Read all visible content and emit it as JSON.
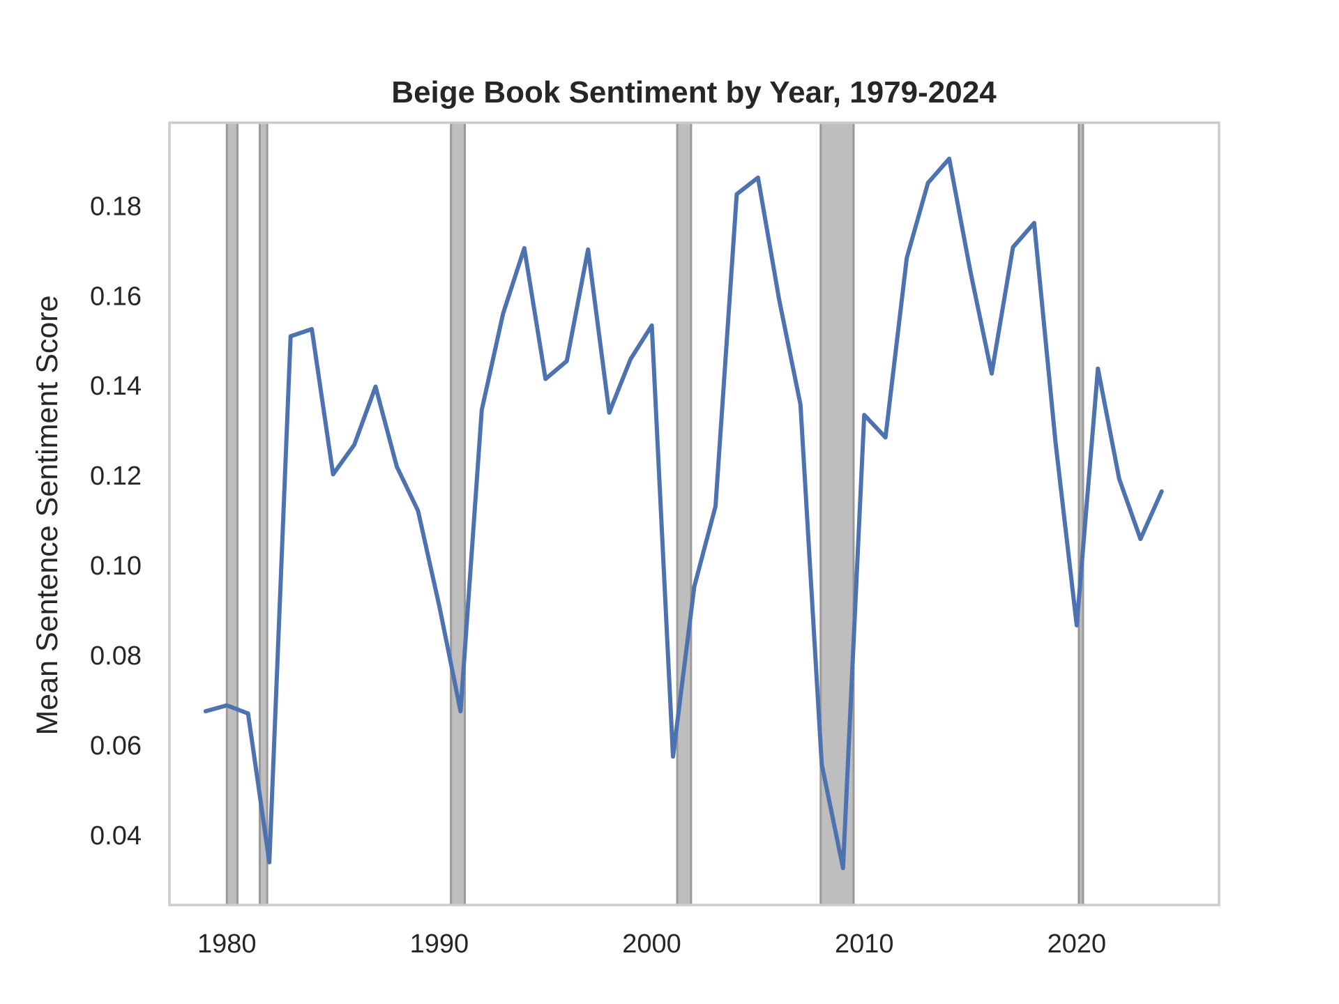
{
  "chart_data": {
    "type": "line",
    "title": "Beige Book Sentiment by Year, 1979-2024",
    "xlabel": "",
    "ylabel": "Mean Sentence Sentiment Score",
    "xlim": [
      1977.3,
      2026.7
    ],
    "ylim": [
      0.0245,
      0.1985
    ],
    "x_ticks": [
      1980,
      1990,
      2000,
      2010,
      2020
    ],
    "y_ticks": [
      0.04,
      0.06,
      0.08,
      0.1,
      0.12,
      0.14,
      0.16,
      0.18
    ],
    "y_tick_labels": [
      "0.04",
      "0.06",
      "0.08",
      "0.10",
      "0.12",
      "0.14",
      "0.16",
      "0.18"
    ],
    "x_tick_labels": [
      "1980",
      "1990",
      "2000",
      "2010",
      "2020"
    ],
    "grid": false,
    "legend": "none",
    "colors": {
      "line": "#4c72b0",
      "recession_fill": "#bebebe",
      "recession_edge": "#9a9a9a",
      "frame": "#cccccc",
      "text": "#262626"
    },
    "recession_bands": [
      [
        1980.0,
        1980.5
      ],
      [
        1981.55,
        1981.9
      ],
      [
        1990.55,
        1991.2
      ],
      [
        2001.2,
        2001.85
      ],
      [
        2007.95,
        2009.5
      ],
      [
        2020.1,
        2020.3
      ]
    ],
    "series": [
      {
        "x": [
          1979,
          1980,
          1981,
          1982,
          1983,
          1984,
          1985,
          1986,
          1987,
          1988,
          1989,
          1990,
          1991,
          1992,
          1993,
          1994,
          1995,
          1996,
          1997,
          1998,
          1999,
          2000,
          2001,
          2002,
          2003,
          2004,
          2005,
          2006,
          2007,
          2008,
          2009,
          2010,
          2011,
          2012,
          2013,
          2014,
          2015,
          2016,
          2017,
          2018,
          2019,
          2020,
          2021,
          2022,
          2023,
          2024
        ],
        "values": [
          0.0676,
          0.0689,
          0.0671,
          0.034,
          0.151,
          0.1526,
          0.1203,
          0.1269,
          0.1398,
          0.122,
          0.1122,
          0.091,
          0.0676,
          0.1346,
          0.156,
          0.1706,
          0.1415,
          0.1455,
          0.1703,
          0.134,
          0.1459,
          0.1534,
          0.0575,
          0.0953,
          0.1132,
          0.1826,
          0.1863,
          0.159,
          0.1358,
          0.0558,
          0.0327,
          0.1335,
          0.1285,
          0.1684,
          0.1851,
          0.1905,
          0.1653,
          0.1427,
          0.1708,
          0.1762,
          0.1276,
          0.0867,
          0.1438,
          0.1193,
          0.1059,
          0.1165
        ]
      }
    ]
  }
}
